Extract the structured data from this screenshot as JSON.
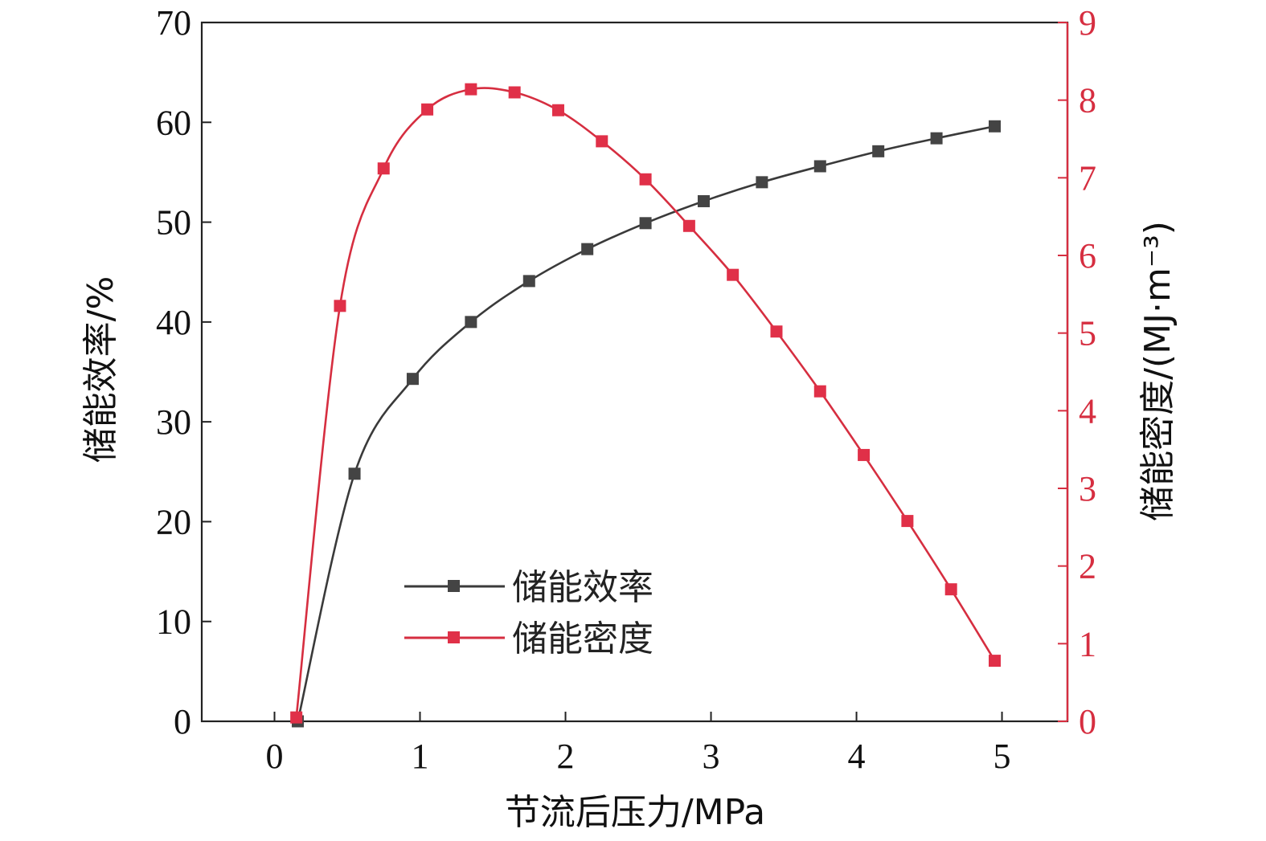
{
  "chart_data": {
    "type": "line",
    "xlabel": "节流后压力/MPa",
    "ylabel_left": "储能效率/%",
    "ylabel_right": "储能密度/(MJ·m⁻³)",
    "xlim": [
      -0.5,
      5.45
    ],
    "ylim_left": [
      0,
      70
    ],
    "ylim_right": [
      0,
      9
    ],
    "x_ticks": [
      0,
      1,
      2,
      3,
      4,
      5
    ],
    "y_left_ticks": [
      0,
      10,
      20,
      30,
      40,
      50,
      60,
      70
    ],
    "y_right_ticks": [
      0,
      1,
      2,
      3,
      4,
      5,
      6,
      7,
      8,
      9
    ],
    "grid": false,
    "legend_position": "lower-center",
    "series": [
      {
        "name": "储能效率",
        "axis": "left",
        "color": "#3a3a3a",
        "marker_color": "#444444",
        "marker": "square",
        "x": [
          0.16,
          0.55,
          0.95,
          1.35,
          1.75,
          2.15,
          2.55,
          2.95,
          3.35,
          3.75,
          4.15,
          4.55,
          4.95
        ],
        "values": [
          0,
          24.8,
          34.3,
          40.0,
          44.1,
          47.3,
          49.9,
          52.1,
          54.0,
          55.6,
          57.1,
          58.4,
          59.6
        ]
      },
      {
        "name": "储能密度",
        "axis": "right",
        "color": "#d62e40",
        "marker_color": "#e03048",
        "marker": "square",
        "x": [
          0.15,
          0.45,
          0.75,
          1.05,
          1.35,
          1.65,
          1.95,
          2.25,
          2.55,
          2.85,
          3.15,
          3.45,
          3.75,
          4.05,
          4.35,
          4.65,
          4.95
        ],
        "values": [
          0.05,
          5.35,
          7.12,
          7.88,
          8.14,
          8.1,
          7.87,
          7.47,
          6.98,
          6.38,
          5.75,
          5.02,
          4.25,
          3.43,
          2.58,
          1.7,
          0.78
        ]
      }
    ]
  }
}
